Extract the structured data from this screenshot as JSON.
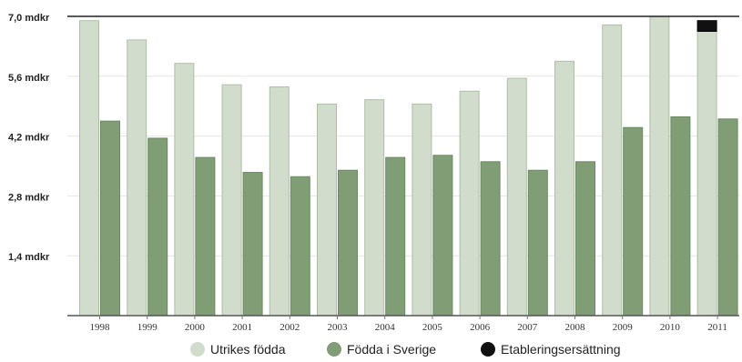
{
  "chart_data": {
    "type": "bar",
    "categories": [
      "1998",
      "1999",
      "2000",
      "2001",
      "2002",
      "2003",
      "2004",
      "2005",
      "2006",
      "2007",
      "2008",
      "2009",
      "2010",
      "2011"
    ],
    "series": [
      {
        "name": "Utrikes födda",
        "values": [
          6.9,
          6.45,
          5.9,
          5.4,
          5.35,
          4.95,
          5.05,
          4.95,
          5.25,
          5.55,
          5.95,
          6.8,
          7.0,
          6.65
        ],
        "color": "#d2dccc",
        "stroke": "#aebfa6"
      },
      {
        "name": "Födda i Sverige",
        "values": [
          4.55,
          4.15,
          3.7,
          3.35,
          3.25,
          3.4,
          3.7,
          3.75,
          3.6,
          3.4,
          3.6,
          4.4,
          4.65,
          4.6
        ],
        "color": "#819d76",
        "stroke": "#6b8a62"
      },
      {
        "name": "Etableringsersättning",
        "values": [
          0,
          0,
          0,
          0,
          0,
          0,
          0,
          0,
          0,
          0,
          0,
          0,
          0,
          0.25
        ],
        "color": "#111111",
        "stroke": "#000000"
      }
    ],
    "stacked_series": "Etableringsersättning",
    "stacked_on": "Utrikes födda",
    "y_ticks": [
      {
        "value": 1.4,
        "label": "1,4 mdkr"
      },
      {
        "value": 2.8,
        "label": "2,8 mdkr"
      },
      {
        "value": 4.2,
        "label": "4,2 mdkr"
      },
      {
        "value": 5.6,
        "label": "5,6 mdkr"
      },
      {
        "value": 7.0,
        "label": "7,0 mdkr"
      }
    ],
    "ylim": [
      0,
      7.0
    ],
    "grid": true,
    "legend_position": "bottom"
  }
}
